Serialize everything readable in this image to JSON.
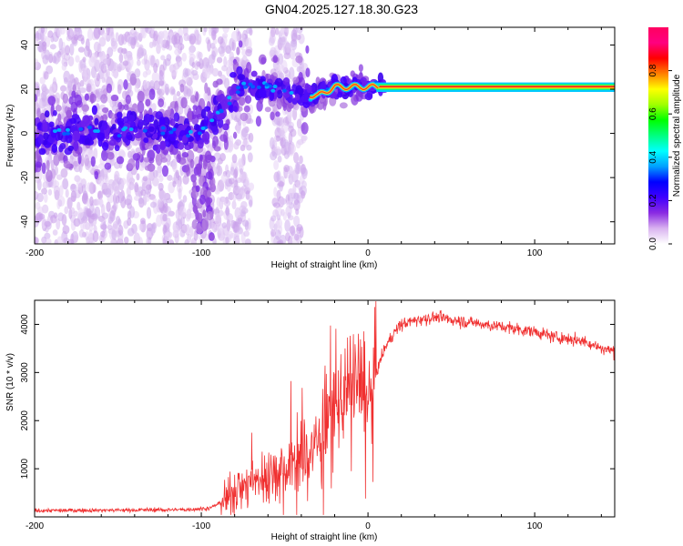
{
  "title": "GN04.2025.127.18.30.G23",
  "chart_data": [
    {
      "type": "heatmap",
      "xlabel": "Height of straight line (km)",
      "ylabel": "Frequency (Hz)",
      "xlim": [
        -200,
        148
      ],
      "ylim": [
        -50,
        48
      ],
      "xticks": [
        "-200",
        "-100",
        "0",
        "100"
      ],
      "yticks": [
        "-40",
        "-20",
        "0",
        "20",
        "40"
      ],
      "colorbar": {
        "label": "Normalized spectral amplitude",
        "range": [
          0,
          1
        ],
        "ticks": [
          "0.0",
          "0.2",
          "0.4",
          "0.6",
          "0.8"
        ],
        "colors": [
          "#ffffff",
          "#d9b3f0",
          "#8a2be2",
          "#4000ff",
          "#0000ff",
          "#00a0ff",
          "#00ffff",
          "#00ff80",
          "#00ff00",
          "#a0ff00",
          "#ffff00",
          "#ff8000",
          "#ff0000",
          "#ff0080",
          "#ff0060"
        ]
      },
      "ridge": [
        {
          "x": -200,
          "y": 0
        },
        {
          "x": -150,
          "y": 1
        },
        {
          "x": -100,
          "y": 0
        },
        {
          "x": -75,
          "y": 22
        },
        {
          "x": -60,
          "y": 21
        },
        {
          "x": -40,
          "y": 18
        },
        {
          "x": -30,
          "y": 17
        },
        {
          "x": -20,
          "y": 21
        },
        {
          "x": -10,
          "y": 21
        },
        {
          "x": 0,
          "y": 21
        },
        {
          "x": 8,
          "y": 21
        },
        {
          "x": 148,
          "y": 21
        }
      ]
    },
    {
      "type": "line",
      "xlabel": "Height of straight line (km)",
      "ylabel": "SNR (10 * v/v)",
      "xlim": [
        -200,
        148
      ],
      "ylim": [
        0,
        4500
      ],
      "xticks": [
        "-200",
        "-100",
        "0",
        "100"
      ],
      "yticks": [
        "1000",
        "2000",
        "3000",
        "4000"
      ],
      "color": "#f03030",
      "series": [
        {
          "x": [
            -200,
            -150,
            -110,
            -95,
            -85,
            -80,
            -70,
            -60,
            -50,
            -40,
            -30,
            -25,
            -20,
            -15,
            -10,
            -5,
            0,
            5,
            10,
            15,
            20,
            30,
            40,
            50,
            60,
            70,
            80,
            90,
            100,
            110,
            120,
            130,
            140,
            148
          ],
          "y": [
            130,
            140,
            150,
            180,
            350,
            550,
            700,
            900,
            1000,
            1200,
            1500,
            1900,
            2200,
            2500,
            2700,
            2800,
            2200,
            3000,
            3500,
            3800,
            4000,
            4100,
            4150,
            4100,
            4050,
            4000,
            3950,
            3900,
            3850,
            3750,
            3700,
            3650,
            3500,
            3450
          ]
        }
      ]
    }
  ]
}
